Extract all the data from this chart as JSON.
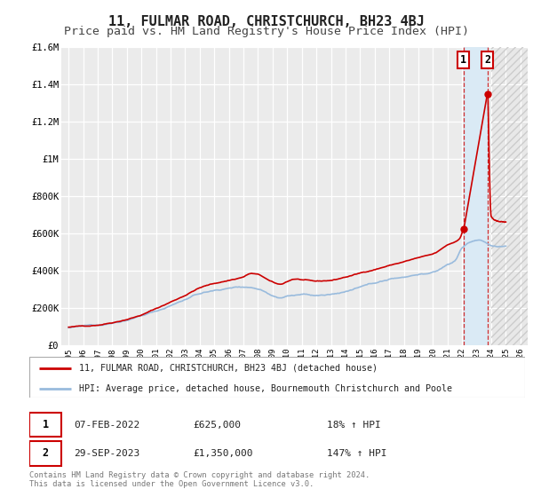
{
  "title": "11, FULMAR ROAD, CHRISTCHURCH, BH23 4BJ",
  "subtitle": "Price paid vs. HM Land Registry's House Price Index (HPI)",
  "ylim": [
    0,
    1600000
  ],
  "xlim": [
    1994.5,
    2026.5
  ],
  "yticks": [
    0,
    200000,
    400000,
    600000,
    800000,
    1000000,
    1200000,
    1400000,
    1600000
  ],
  "ytick_labels": [
    "£0",
    "£200K",
    "£400K",
    "£600K",
    "£800K",
    "£1M",
    "£1.2M",
    "£1.4M",
    "£1.6M"
  ],
  "xticks": [
    1995,
    1996,
    1997,
    1998,
    1999,
    2000,
    2001,
    2002,
    2003,
    2004,
    2005,
    2006,
    2007,
    2008,
    2009,
    2010,
    2011,
    2012,
    2013,
    2014,
    2015,
    2016,
    2017,
    2018,
    2019,
    2020,
    2021,
    2022,
    2023,
    2024,
    2025,
    2026
  ],
  "plot_bg_color": "#ebebeb",
  "grid_color": "#ffffff",
  "sale_color": "#cc0000",
  "hpi_color": "#99bbdd",
  "sale1_x": 2022.1,
  "sale1_y": 625000,
  "sale2_x": 2023.75,
  "sale2_y": 1350000,
  "highlight_color": "#daeaf5",
  "hatch_color": "#dddddd",
  "vline_color": "#cc0000",
  "legend_label_sale": "11, FULMAR ROAD, CHRISTCHURCH, BH23 4BJ (detached house)",
  "legend_label_hpi": "HPI: Average price, detached house, Bournemouth Christchurch and Poole",
  "table_row1": [
    "1",
    "07-FEB-2022",
    "£625,000",
    "18% ↑ HPI"
  ],
  "table_row2": [
    "2",
    "29-SEP-2023",
    "£1,350,000",
    "147% ↑ HPI"
  ],
  "footer": "Contains HM Land Registry data © Crown copyright and database right 2024.\nThis data is licensed under the Open Government Licence v3.0.",
  "title_fontsize": 11,
  "subtitle_fontsize": 9.5
}
